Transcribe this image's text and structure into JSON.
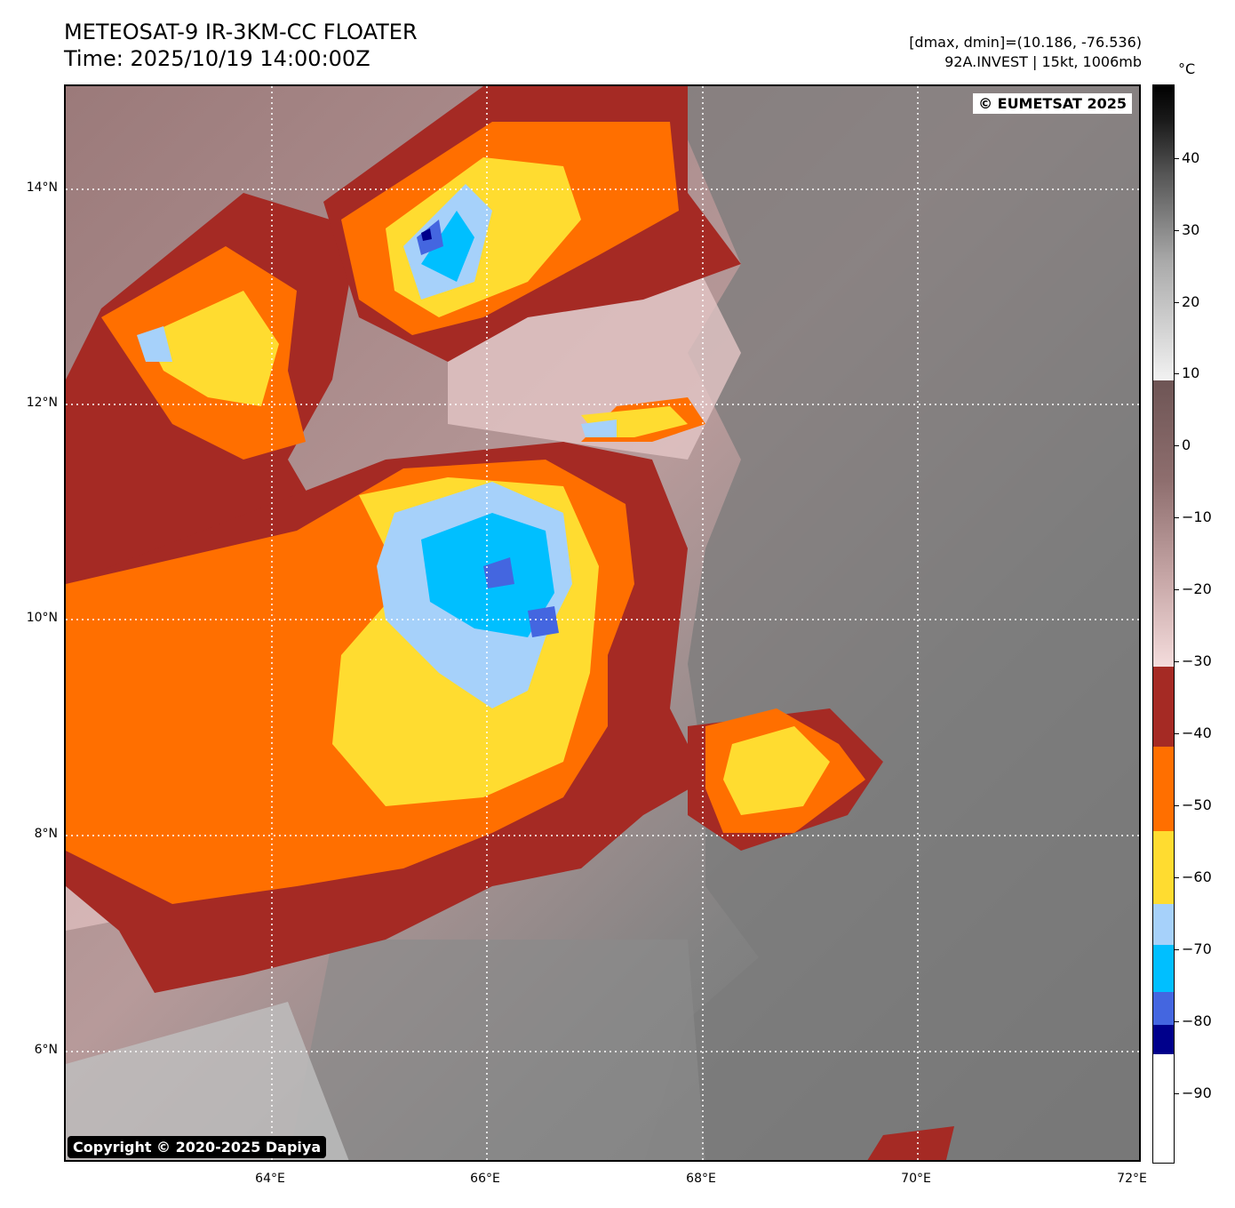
{
  "header": {
    "title_line1": "METEOSAT-9 IR-3KM-CC FLOATER",
    "title_line2": "Time: 2025/10/19 14:00:00Z",
    "info_line1": "[dmax, dmin]=(10.186, -76.536)",
    "info_line2": "92A.INVEST | 15kt, 1006mb"
  },
  "map": {
    "eumetsat_credit": "© EUMETSAT 2025",
    "dapiya_credit": "Copyright © 2020-2025 Dapiya",
    "lat_labels": [
      "14°N",
      "12°N",
      "10°N",
      "8°N",
      "6°N"
    ],
    "lon_labels": [
      "64°E",
      "66°E",
      "68°E",
      "70°E",
      "72°E"
    ],
    "background_colors": {
      "ocean_gray": "#7a7a7a",
      "mid_brown": "#8c6c6c",
      "light_pink": "#e8caca"
    }
  },
  "colorbar": {
    "unit": "°C",
    "labels": [
      "40",
      "30",
      "20",
      "10",
      "0",
      "−10",
      "−20",
      "−30",
      "−40",
      "−50",
      "−60",
      "−70",
      "−80",
      "−90"
    ],
    "colors": {
      "dark_red": "#a52a24",
      "orange": "#ff6f00",
      "yellow": "#ffdc30",
      "light_blue": "#a6d1fa",
      "cyan": "#00bfff",
      "royal_blue": "#4466e0",
      "navy": "#00008b"
    }
  }
}
